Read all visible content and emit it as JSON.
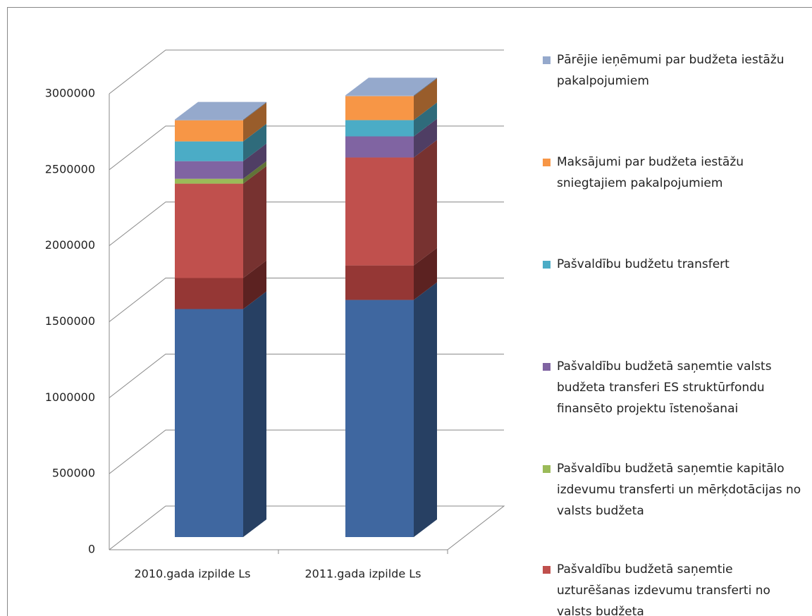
{
  "chart_data": {
    "type": "bar3d-stacked",
    "categories": [
      "2010.gada izpilde Ls",
      "2011.gada izpilde Ls"
    ],
    "ylim": [
      0,
      3000000
    ],
    "yticks": [
      0,
      500000,
      1000000,
      1500000,
      2000000,
      2500000,
      3000000
    ],
    "grid": true,
    "legend": "right",
    "series": [
      {
        "color": "#3f67a0",
        "values": [
          1500000,
          1560000
        ]
      },
      {
        "color": "#953735",
        "values": [
          204000,
          227000
        ]
      },
      {
        "name": "Pašvaldību budžetā saņemtie uzturēšanas izdevumu transferti no valsts budžeta",
        "color": "#c0504d",
        "values": [
          621000,
          710000
        ]
      },
      {
        "name": "Pašvaldību budžetā saņemtie kapitālo izdevumu transferti un mērķdotācijas no valsts budžeta",
        "color": "#9bbb59",
        "values": [
          32000,
          0
        ]
      },
      {
        "name": "Pašvaldību budžetā saņemtie valsts budžeta transferi ES struktūrfondu finansēto projektu īstenošanai",
        "color": "#8064a2",
        "values": [
          116000,
          139000
        ]
      },
      {
        "name": "Pašvaldību budžetu transfert",
        "color": "#4bacc6",
        "values": [
          130000,
          107000
        ]
      },
      {
        "name": "Maksājumi par budžeta iestāžu sniegtajiem pakalpojumiem",
        "color": "#f79646",
        "values": [
          139000,
          158000
        ]
      },
      {
        "name": "Pārējie ieņēmumi par budžeta iestāžu pakalpojumiem",
        "color": "#95a9cc",
        "values": [
          5000,
          5000
        ]
      }
    ]
  }
}
